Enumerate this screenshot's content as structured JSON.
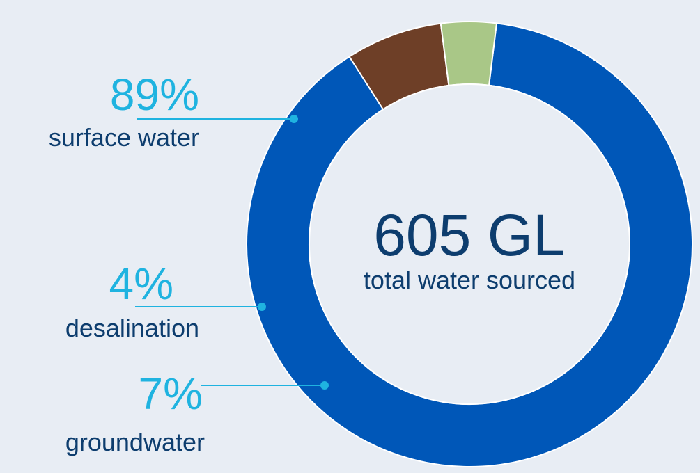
{
  "colors": {
    "background": "#e8edf4",
    "percent_text": "#1fb3e0",
    "label_text": "#0d3d6e",
    "leader_line": "#1fb3e0",
    "hole": "#e8edf4"
  },
  "center": {
    "value": "605 GL",
    "label": "total water sourced"
  },
  "chart_data": {
    "type": "pie",
    "variant": "donut",
    "title": "",
    "total": "605 GL",
    "slices": [
      {
        "label": "surface water",
        "value": 89,
        "display": "89%",
        "color": "#0057b8"
      },
      {
        "label": "desalination",
        "value": 4,
        "display": "4%",
        "color": "#a9c787"
      },
      {
        "label": "groundwater",
        "value": 7,
        "display": "7%",
        "color": "#6e3f27"
      }
    ]
  }
}
